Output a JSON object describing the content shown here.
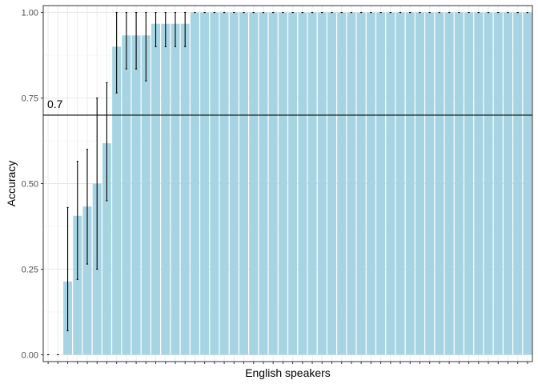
{
  "chart_data": {
    "type": "bar",
    "xlabel": "English speakers",
    "ylabel": "Accuracy",
    "ylim": [
      -0.02,
      1.02
    ],
    "yticks": [
      0.0,
      0.25,
      0.5,
      0.75,
      1.0
    ],
    "ytick_labels": [
      "0.00",
      "0.25",
      "0.50",
      "0.75",
      "1.00"
    ],
    "grid": true,
    "bar_color": "#a6d4e3",
    "reference_line": {
      "y": 0.7,
      "label": "0.7",
      "color": "#000000"
    },
    "values": [
      0,
      0,
      0.214,
      0.406,
      0.433,
      0.5,
      0.618,
      0.9,
      0.933,
      0.933,
      0.933,
      0.967,
      0.967,
      0.967,
      0.967,
      1,
      1,
      1,
      1,
      1,
      1,
      1,
      1,
      1,
      1,
      1,
      1,
      1,
      1,
      1,
      1,
      1,
      1,
      1,
      1,
      1,
      1,
      1,
      1,
      1,
      1,
      1,
      1,
      1,
      1,
      1,
      1,
      1,
      1,
      1
    ],
    "error_bars": [
      [
        0,
        0
      ],
      [
        0,
        0
      ],
      [
        0.07,
        0.43
      ],
      [
        0.22,
        0.565
      ],
      [
        0.265,
        0.6
      ],
      [
        0.25,
        0.75
      ],
      [
        0.45,
        0.795
      ],
      [
        0.765,
        1
      ],
      [
        0.835,
        1
      ],
      [
        0.835,
        1
      ],
      [
        0.8,
        1
      ],
      [
        0.9,
        1
      ],
      [
        0.9,
        1
      ],
      [
        0.9,
        1
      ],
      [
        0.9,
        1
      ],
      [
        1,
        1
      ],
      [
        1,
        1
      ],
      [
        1,
        1
      ],
      [
        1,
        1
      ],
      [
        1,
        1
      ],
      [
        1,
        1
      ],
      [
        1,
        1
      ],
      [
        1,
        1
      ],
      [
        1,
        1
      ],
      [
        1,
        1
      ],
      [
        1,
        1
      ],
      [
        1,
        1
      ],
      [
        1,
        1
      ],
      [
        1,
        1
      ],
      [
        1,
        1
      ],
      [
        1,
        1
      ],
      [
        1,
        1
      ],
      [
        1,
        1
      ],
      [
        1,
        1
      ],
      [
        1,
        1
      ],
      [
        1,
        1
      ],
      [
        1,
        1
      ],
      [
        1,
        1
      ],
      [
        1,
        1
      ],
      [
        1,
        1
      ],
      [
        1,
        1
      ],
      [
        1,
        1
      ],
      [
        1,
        1
      ],
      [
        1,
        1
      ],
      [
        1,
        1
      ],
      [
        1,
        1
      ],
      [
        1,
        1
      ],
      [
        1,
        1
      ],
      [
        1,
        1
      ],
      [
        1,
        1
      ]
    ]
  }
}
